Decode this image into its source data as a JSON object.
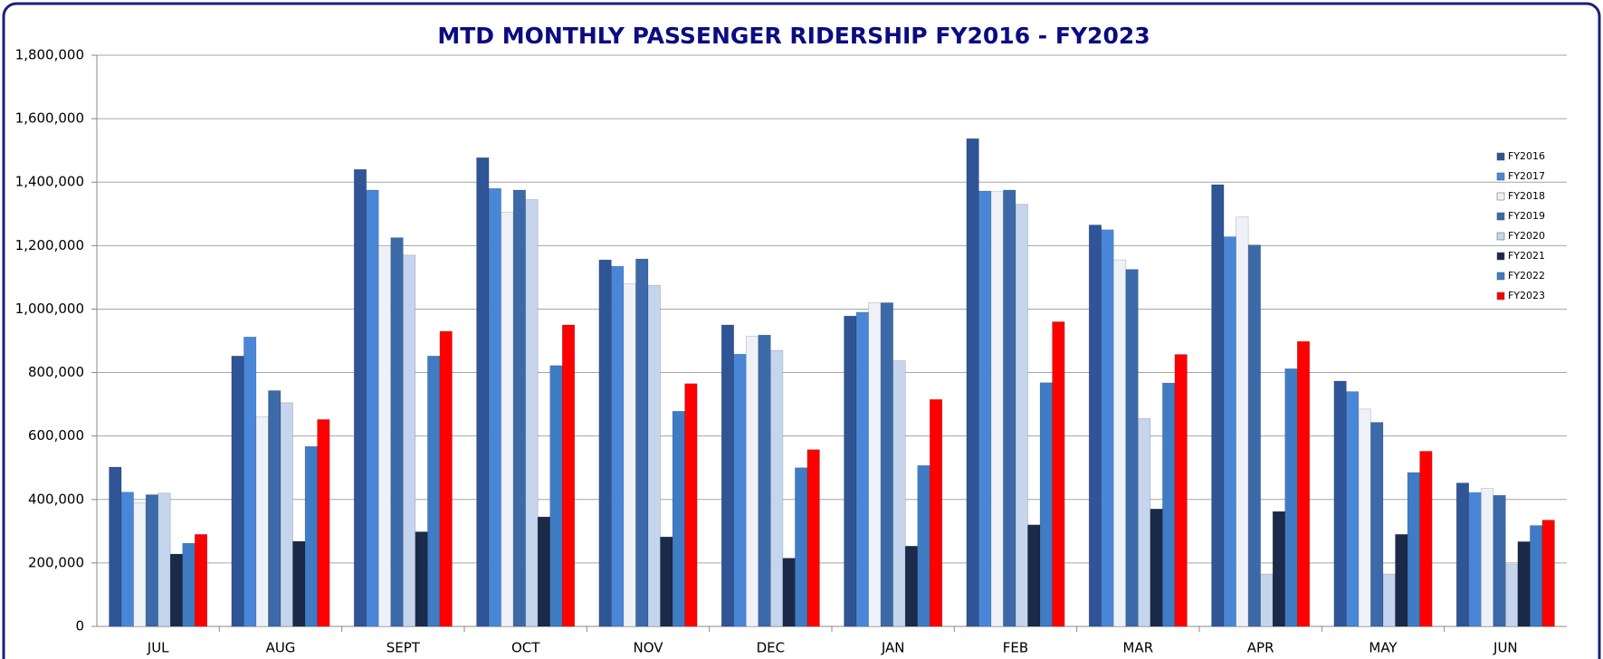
{
  "chart_data": {
    "type": "bar",
    "title": "MTD MONTHLY PASSENGER RIDERSHIP FY2016 - FY2023",
    "categories": [
      "JUL",
      "AUG",
      "SEPT",
      "OCT",
      "NOV",
      "DEC",
      "JAN",
      "FEB",
      "MAR",
      "APR",
      "MAY",
      "JUN"
    ],
    "series": [
      {
        "name": "FY2016",
        "color": "#2f5597",
        "values": [
          502000,
          852000,
          1440000,
          1477000,
          1155000,
          950000,
          978000,
          1537000,
          1265000,
          1392000,
          773000,
          452000
        ]
      },
      {
        "name": "FY2017",
        "color": "#4a86d8",
        "values": [
          423000,
          912000,
          1375000,
          1380000,
          1135000,
          858000,
          990000,
          1372000,
          1250000,
          1228000,
          740000,
          422000
        ]
      },
      {
        "name": "FY2018",
        "color": "#eef1f8",
        "values": [
          390000,
          660000,
          1200000,
          1305000,
          1080000,
          915000,
          1020000,
          1370000,
          1155000,
          1290000,
          685000,
          435000
        ]
      },
      {
        "name": "FY2019",
        "color": "#3c6aa8",
        "values": [
          415000,
          743000,
          1225000,
          1375000,
          1158000,
          918000,
          1020000,
          1375000,
          1125000,
          1202000,
          643000,
          413000
        ]
      },
      {
        "name": "FY2020",
        "color": "#c5d5ee",
        "values": [
          420000,
          705000,
          1170000,
          1345000,
          1075000,
          870000,
          837000,
          1330000,
          655000,
          165000,
          165000,
          195000
        ]
      },
      {
        "name": "FY2021",
        "color": "#1a2a48",
        "values": [
          228000,
          268000,
          298000,
          345000,
          282000,
          215000,
          253000,
          320000,
          370000,
          362000,
          290000,
          267000
        ]
      },
      {
        "name": "FY2022",
        "color": "#3f7cc4",
        "values": [
          262000,
          567000,
          852000,
          822000,
          678000,
          500000,
          507000,
          768000,
          767000,
          812000,
          485000,
          318000
        ]
      },
      {
        "name": "FY2023",
        "color": "#ff0000",
        "values": [
          290000,
          652000,
          930000,
          950000,
          765000,
          557000,
          715000,
          960000,
          857000,
          898000,
          552000,
          335000
        ]
      }
    ],
    "ylim": [
      0,
      1800000
    ],
    "yticks": [
      0,
      {
        "value": 200000,
        "label": "200,000"
      },
      {
        "value": 400000,
        "label": "400,000"
      },
      {
        "value": 600000,
        "label": "600,000"
      },
      {
        "value": 800000,
        "label": "800,000"
      },
      {
        "value": 1000000,
        "label": "1,000,000"
      },
      {
        "value": 1200000,
        "label": "1,200,000"
      },
      {
        "value": 1400000,
        "label": "1,400,000"
      },
      {
        "value": 1600000,
        "label": "1,600,000"
      },
      {
        "value": 1800000,
        "label": "1,800,000"
      }
    ],
    "grid": true,
    "legend": "right"
  }
}
